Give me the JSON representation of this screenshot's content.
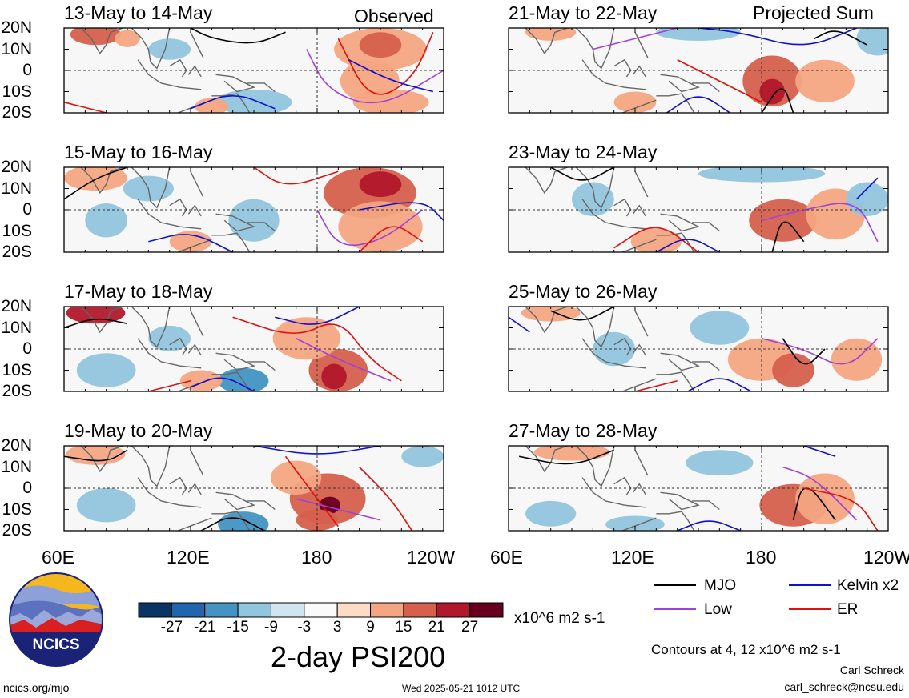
{
  "chart_data": {
    "type": "heatmap",
    "panels": [
      {
        "title": "13-May to 14-May",
        "tag": "Observed",
        "column": 0,
        "row": 0
      },
      {
        "title": "15-May to 16-May",
        "tag": "",
        "column": 0,
        "row": 1
      },
      {
        "title": "17-May to 18-May",
        "tag": "",
        "column": 0,
        "row": 2
      },
      {
        "title": "19-May to 20-May",
        "tag": "",
        "column": 0,
        "row": 3
      },
      {
        "title": "21-May to 22-May",
        "tag": "Projected Sum",
        "column": 1,
        "row": 0
      },
      {
        "title": "23-May to 24-May",
        "tag": "",
        "column": 1,
        "row": 1
      },
      {
        "title": "25-May to 26-May",
        "tag": "",
        "column": 1,
        "row": 2
      },
      {
        "title": "27-May to 28-May",
        "tag": "",
        "column": 1,
        "row": 3
      }
    ],
    "lat_labels": [
      "20N",
      "10N",
      "0",
      "10S",
      "20S"
    ],
    "lon_labels": [
      "60E",
      "120E",
      "180",
      "120W"
    ],
    "lon_range": [
      60,
      240
    ],
    "lat_range": [
      -20,
      20
    ],
    "colorbar": {
      "ticks": [
        "-27",
        "-21",
        "-15",
        "-9",
        "-3",
        "3",
        "9",
        "15",
        "21",
        "27"
      ],
      "colors": [
        "#0a3366",
        "#2166ac",
        "#4393c3",
        "#92c5de",
        "#d1e5f0",
        "#fafafa",
        "#fddbc7",
        "#f4a582",
        "#d6604d",
        "#b2182b",
        "#67001f"
      ],
      "unit": "x10^6 m2 s-1"
    },
    "legend": [
      {
        "label": "MJO",
        "color": "#000000"
      },
      {
        "label": "Kelvin x2",
        "color": "#1010d0"
      },
      {
        "label": "Low",
        "color": "#a040e0"
      },
      {
        "label": "ER",
        "color": "#e01010"
      }
    ],
    "contours_note": "Contours at 4, 12 x10^6 m2 s-1",
    "title": "2-day PSI200"
  },
  "footer": {
    "site": "ncics.org/mjo",
    "timestamp": "Wed 2025-05-21 1012 UTC",
    "author": "Carl Schreck",
    "email": "carl_schreck@ncsu.edu",
    "logo_text": "NCICS"
  }
}
